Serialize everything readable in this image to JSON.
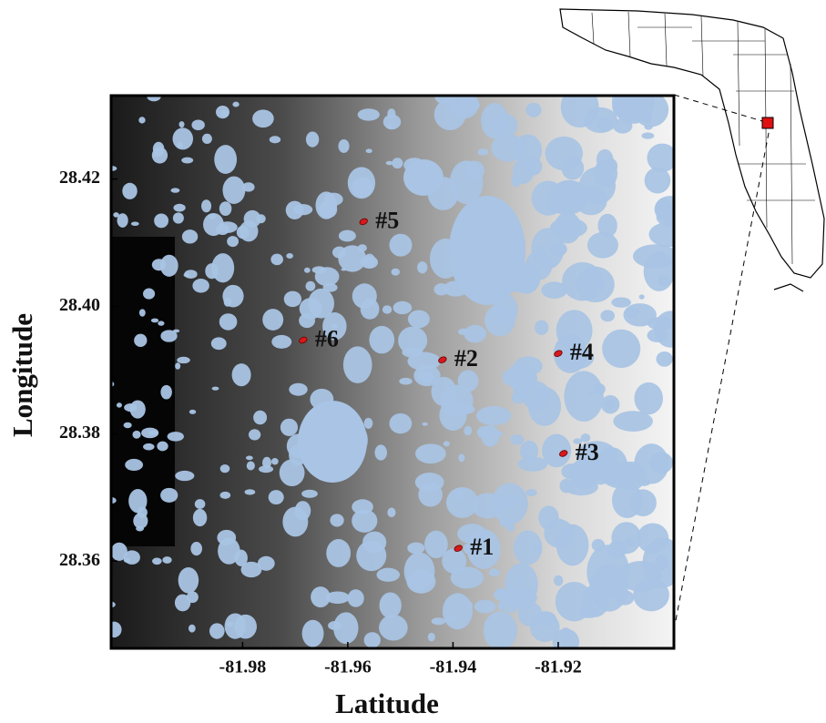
{
  "chart_data": {
    "type": "map",
    "xlabel": "Latitude",
    "ylabel": "Longitude",
    "xlim": [
      -82.005,
      -81.898
    ],
    "ylim": [
      28.3463,
      28.4331
    ],
    "xticks": [
      -81.98,
      -81.96,
      -81.94,
      -81.92
    ],
    "yticks": [
      28.42,
      {
        "value": 28.4,
        "label": "28.40"
      },
      28.38,
      28.36
    ],
    "labels": [
      "#1",
      "#2",
      "#3",
      "#4",
      "#5",
      "#6"
    ],
    "x": [
      -81.939,
      -81.942,
      -81.919,
      -81.92,
      -81.957,
      -81.9685
    ],
    "y": [
      28.362,
      28.3916,
      28.3769,
      28.3926,
      28.4133,
      28.3947
    ],
    "color": "#d7191c"
  }
}
